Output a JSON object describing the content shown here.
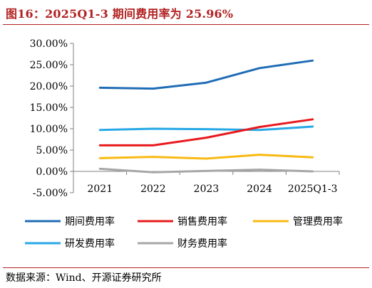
{
  "header": {
    "title": "图16：2025Q1-3 期间费用率为 25.96%"
  },
  "footer": {
    "source": "数据来源：Wind、开源证券研究所"
  },
  "chart_data": {
    "type": "line",
    "categories": [
      "2021",
      "2022",
      "2023",
      "2024",
      "2025Q1-3"
    ],
    "ylim": [
      -5,
      30
    ],
    "yticks": [
      -5,
      0,
      5,
      10,
      15,
      20,
      25,
      30
    ],
    "ytick_labels": [
      "-5.00%",
      "0.00%",
      "5.00%",
      "10.00%",
      "15.00%",
      "20.00%",
      "25.00%",
      "30.00%"
    ],
    "grid": false,
    "legend_position": "bottom",
    "series": [
      {
        "name": "期间费用率",
        "color": "#1f6cb5",
        "values": [
          19.6,
          19.4,
          20.8,
          24.2,
          25.96
        ]
      },
      {
        "name": "销售费用率",
        "color": "#e8191d",
        "values": [
          6.1,
          6.1,
          7.9,
          10.4,
          12.2
        ]
      },
      {
        "name": "管理费用率",
        "color": "#f8b912",
        "values": [
          3.1,
          3.4,
          3.0,
          3.9,
          3.3
        ]
      },
      {
        "name": "研发费用率",
        "color": "#27a8e6",
        "values": [
          9.7,
          10.0,
          9.9,
          9.7,
          10.5
        ]
      },
      {
        "name": "财务费用率",
        "color": "#a6a6a6",
        "values": [
          0.6,
          -0.2,
          0.1,
          0.4,
          0.0
        ]
      }
    ]
  }
}
